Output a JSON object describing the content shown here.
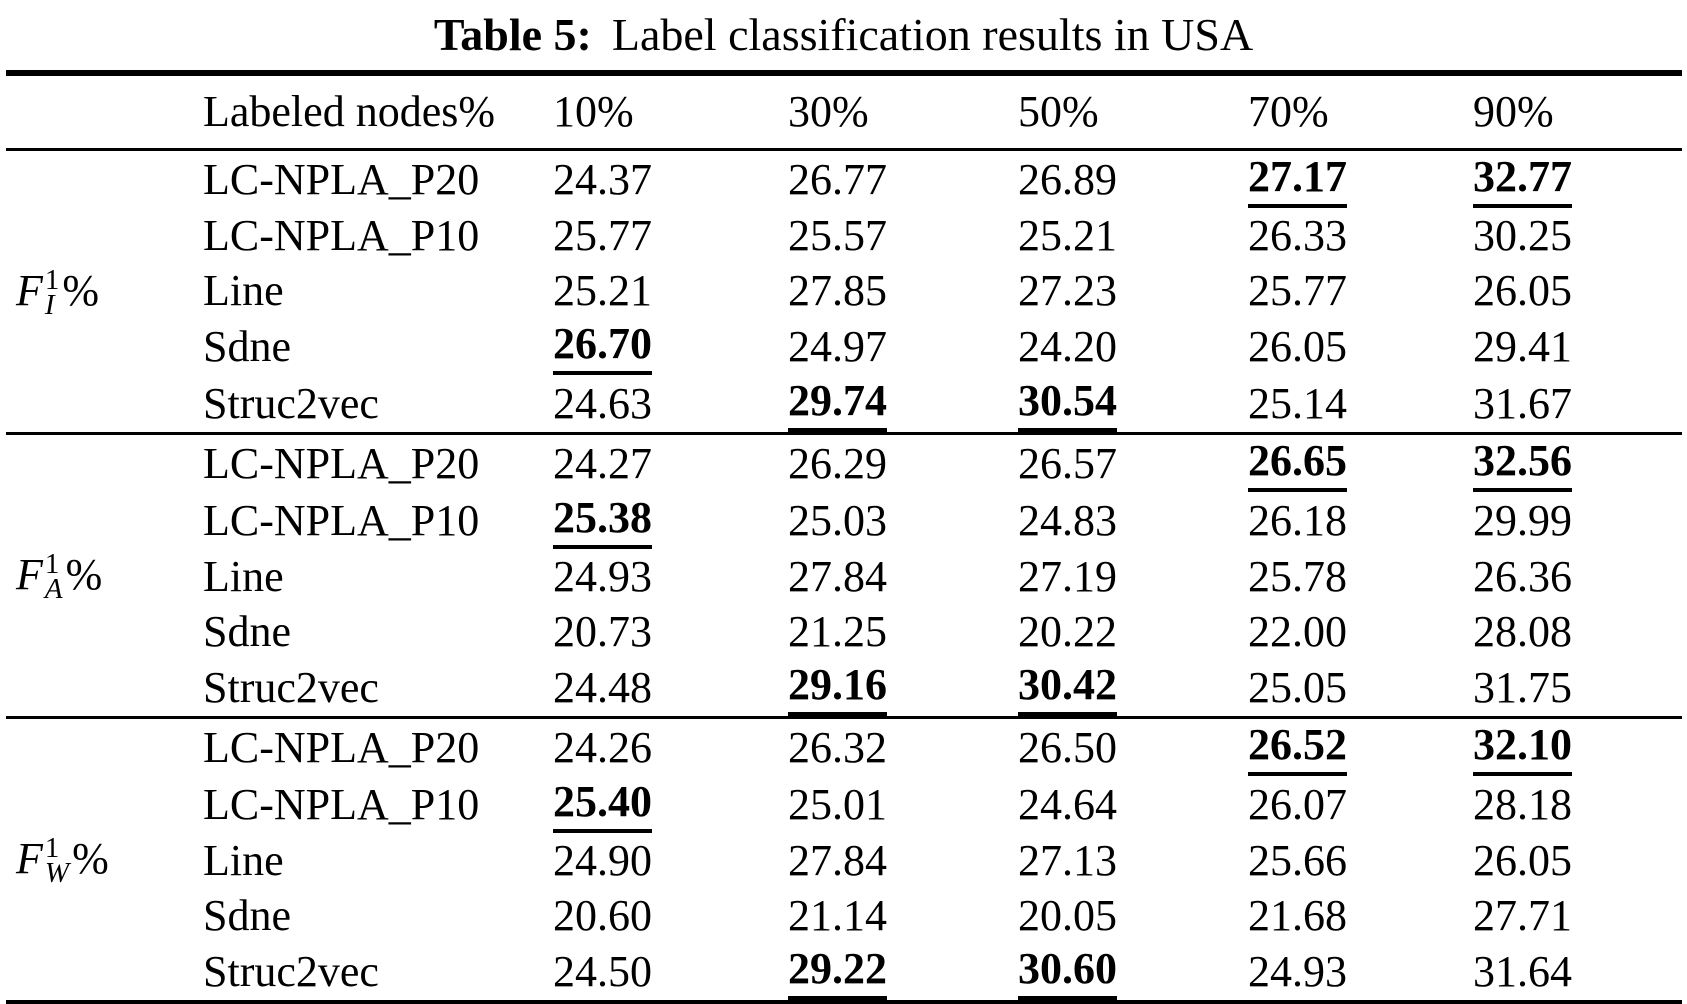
{
  "caption": {
    "label": "Table 5:",
    "text": "Label classification results in USA"
  },
  "table": {
    "header": {
      "row_label": "Labeled nodes%",
      "columns": [
        "10%",
        "30%",
        "50%",
        "70%",
        "90%"
      ]
    },
    "groups": [
      {
        "metric": {
          "base": "F",
          "sup": "1",
          "sub": "I",
          "suffix": "%"
        },
        "rows": [
          {
            "method": "LC-NPLA_P20",
            "values": [
              "24.37",
              "26.77",
              "26.89",
              "27.17",
              "32.77"
            ],
            "bold": [
              3,
              4
            ]
          },
          {
            "method": "LC-NPLA_P10",
            "values": [
              "25.77",
              "25.57",
              "25.21",
              "26.33",
              "30.25"
            ],
            "bold": []
          },
          {
            "method": "Line",
            "values": [
              "25.21",
              "27.85",
              "27.23",
              "25.77",
              "26.05"
            ],
            "bold": []
          },
          {
            "method": "Sdne",
            "values": [
              "26.70",
              "24.97",
              "24.20",
              "26.05",
              "29.41"
            ],
            "bold": [
              0
            ]
          },
          {
            "method": "Struc2vec",
            "values": [
              "24.63",
              "29.74",
              "30.54",
              "25.14",
              "31.67"
            ],
            "bold": [
              1,
              2
            ]
          }
        ]
      },
      {
        "metric": {
          "base": "F",
          "sup": "1",
          "sub": "A",
          "suffix": "%"
        },
        "rows": [
          {
            "method": "LC-NPLA_P20",
            "values": [
              "24.27",
              "26.29",
              "26.57",
              "26.65",
              "32.56"
            ],
            "bold": [
              3,
              4
            ]
          },
          {
            "method": "LC-NPLA_P10",
            "values": [
              "25.38",
              "25.03",
              "24.83",
              "26.18",
              "29.99"
            ],
            "bold": [
              0
            ]
          },
          {
            "method": "Line",
            "values": [
              "24.93",
              "27.84",
              "27.19",
              "25.78",
              "26.36"
            ],
            "bold": []
          },
          {
            "method": "Sdne",
            "values": [
              "20.73",
              "21.25",
              "20.22",
              "22.00",
              "28.08"
            ],
            "bold": []
          },
          {
            "method": "Struc2vec",
            "values": [
              "24.48",
              "29.16",
              "30.42",
              "25.05",
              "31.75"
            ],
            "bold": [
              1,
              2
            ]
          }
        ]
      },
      {
        "metric": {
          "base": "F",
          "sup": "1",
          "sub": "W",
          "suffix": "%"
        },
        "rows": [
          {
            "method": "LC-NPLA_P20",
            "values": [
              "24.26",
              "26.32",
              "26.50",
              "26.52",
              "32.10"
            ],
            "bold": [
              3,
              4
            ]
          },
          {
            "method": "LC-NPLA_P10",
            "values": [
              "25.40",
              "25.01",
              "24.64",
              "26.07",
              "28.18"
            ],
            "bold": [
              0
            ]
          },
          {
            "method": "Line",
            "values": [
              "24.90",
              "27.84",
              "27.13",
              "25.66",
              "26.05"
            ],
            "bold": []
          },
          {
            "method": "Sdne",
            "values": [
              "20.60",
              "21.14",
              "20.05",
              "21.68",
              "27.71"
            ],
            "bold": []
          },
          {
            "method": "Struc2vec",
            "values": [
              "24.50",
              "29.22",
              "30.60",
              "24.93",
              "31.64"
            ],
            "bold": [
              1,
              2
            ]
          }
        ]
      }
    ]
  }
}
